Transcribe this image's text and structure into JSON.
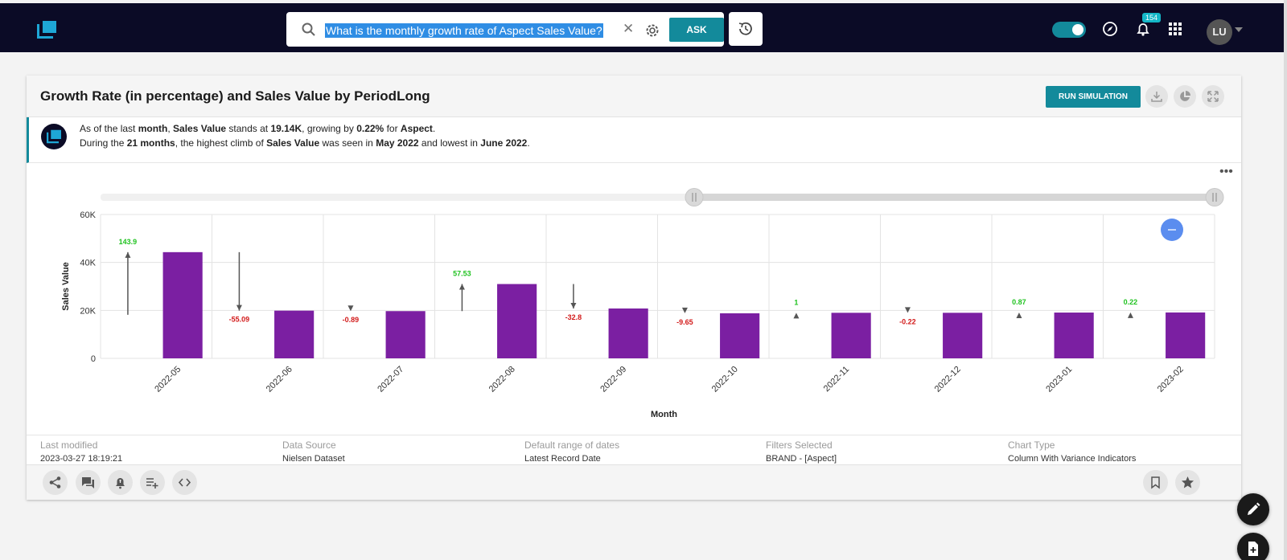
{
  "topbar": {
    "search_query": "What is the monthly growth rate of Aspect Sales Value?",
    "ask_label": "ASK",
    "notification_count": "154",
    "avatar_initials": "LU",
    "accent_color": "#138a9b"
  },
  "card": {
    "title": "Growth Rate (in percentage) and Sales Value by PeriodLong",
    "run_simulation_label": "RUN SIMULATION",
    "insight": {
      "l1_a": "As of the last ",
      "l1_b": "month",
      "l1_c": ", ",
      "l1_d": "Sales Value",
      "l1_e": " stands at ",
      "l1_f": "19.14K",
      "l1_g": ",  growing by ",
      "l1_h": "0.22%",
      "l1_i": " for ",
      "l1_j": "Aspect",
      "l1_k": ".",
      "l2_a": "During the ",
      "l2_b": "21 months",
      "l2_c": ",  the highest climb of ",
      "l2_d": "Sales Value",
      "l2_e": " was seen in ",
      "l2_f": "May 2022",
      "l2_g": "  and lowest in ",
      "l2_h": "June 2022",
      "l2_i": "."
    },
    "meta": [
      {
        "label": "Last modified",
        "value": "2023-03-27 18:19:21"
      },
      {
        "label": "Data Source",
        "value": "Nielsen Dataset"
      },
      {
        "label": "Default range of dates",
        "value": "Latest Record Date"
      },
      {
        "label": "Filters Selected",
        "value": "BRAND - [Aspect]"
      },
      {
        "label": "Chart Type",
        "value": "Column With Variance Indicators"
      }
    ]
  },
  "chart_data": {
    "type": "bar",
    "xlabel": "Month",
    "ylabel": "Sales Value",
    "ylim": [
      0,
      60000
    ],
    "yticks": [
      0,
      20000,
      40000,
      60000
    ],
    "ytick_labels": [
      "0",
      "20K",
      "40K",
      "60K"
    ],
    "categories": [
      "2022-05",
      "2022-06",
      "2022-07",
      "2022-08",
      "2022-09",
      "2022-10",
      "2022-11",
      "2022-12",
      "2023-01",
      "2023-02"
    ],
    "values": [
      44300,
      19900,
      19700,
      31000,
      20800,
      18800,
      19000,
      19000,
      19100,
      19140
    ],
    "variance": [
      143.9,
      -55.09,
      -0.89,
      57.53,
      -32.8,
      -9.65,
      1,
      -0.22,
      0.87,
      0.22
    ],
    "variance_labels": [
      "143.9",
      "-55.09",
      "-0.89",
      "57.53",
      "-32.8",
      "-9.65",
      "1",
      "-0.22",
      "0.87",
      "0.22"
    ],
    "bar_color": "#7b1fa2",
    "positive_color": "#1fc21f",
    "negative_color": "#d21a1a",
    "grid": true
  }
}
